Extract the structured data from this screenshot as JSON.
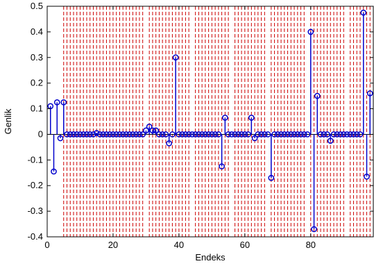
{
  "chart_data": {
    "type": "stem",
    "xlabel": "Endeks",
    "ylabel": "Genlik",
    "xlim": [
      0,
      99
    ],
    "ylim": [
      -0.4,
      0.5
    ],
    "xticks": [
      0,
      20,
      40,
      60,
      80
    ],
    "yticks": [
      -0.4,
      -0.3,
      -0.2,
      -0.1,
      0,
      0.1,
      0.2,
      0.3,
      0.4,
      0.5
    ],
    "grid": false,
    "colors": {
      "stem": "#0000cc",
      "dashed": "#cc0000"
    },
    "series": [
      {
        "x": [
          1,
          2,
          3,
          4,
          5,
          6,
          7,
          8,
          9,
          10,
          11,
          12,
          13,
          14,
          15,
          16,
          17,
          18,
          19,
          20,
          21,
          22,
          23,
          24,
          25,
          26,
          27,
          28,
          29,
          30,
          31,
          32,
          33,
          34,
          35,
          36,
          37,
          38,
          39,
          40,
          41,
          42,
          43,
          44,
          45,
          46,
          47,
          48,
          49,
          50,
          51,
          52,
          53,
          54,
          55,
          56,
          57,
          58,
          59,
          60,
          61,
          62,
          63,
          64,
          65,
          66,
          67,
          68,
          69,
          70,
          71,
          72,
          73,
          74,
          75,
          76,
          77,
          78,
          79,
          80,
          81,
          82,
          83,
          84,
          85,
          86,
          87,
          88,
          89,
          90,
          91,
          92,
          93,
          94,
          95,
          96,
          97,
          98
        ],
        "values": [
          0.11,
          -0.145,
          0.125,
          -0.015,
          0.125,
          0,
          0,
          0,
          0,
          0,
          0,
          0,
          0,
          0,
          0.005,
          0,
          0,
          0,
          0,
          0,
          0,
          0,
          0,
          0,
          0,
          0,
          0,
          0,
          0,
          0.015,
          0.03,
          0.015,
          0.015,
          0,
          0,
          0,
          -0.035,
          0,
          0.3,
          0,
          0,
          0,
          0,
          0,
          0,
          0,
          0,
          0,
          0,
          0,
          0,
          0,
          -0.125,
          0.065,
          0,
          0,
          0,
          0,
          0,
          0,
          0,
          0.065,
          -0.015,
          0,
          0,
          0,
          0,
          -0.17,
          0,
          0,
          0,
          0,
          0,
          0,
          0,
          0,
          0,
          0,
          0,
          0.4,
          -0.37,
          0.15,
          0,
          0,
          0,
          -0.025,
          0,
          0,
          0,
          0,
          0,
          0,
          0,
          0,
          0,
          0.475,
          -0.165,
          0.16
        ]
      }
    ],
    "dashed_lines": {
      "x_start": 5,
      "x_end": 98,
      "gaps": [
        [
          29,
          31
        ],
        [
          43,
          45
        ],
        [
          55,
          57
        ],
        [
          66,
          68
        ],
        [
          78,
          80
        ],
        [
          90,
          92
        ]
      ]
    }
  }
}
